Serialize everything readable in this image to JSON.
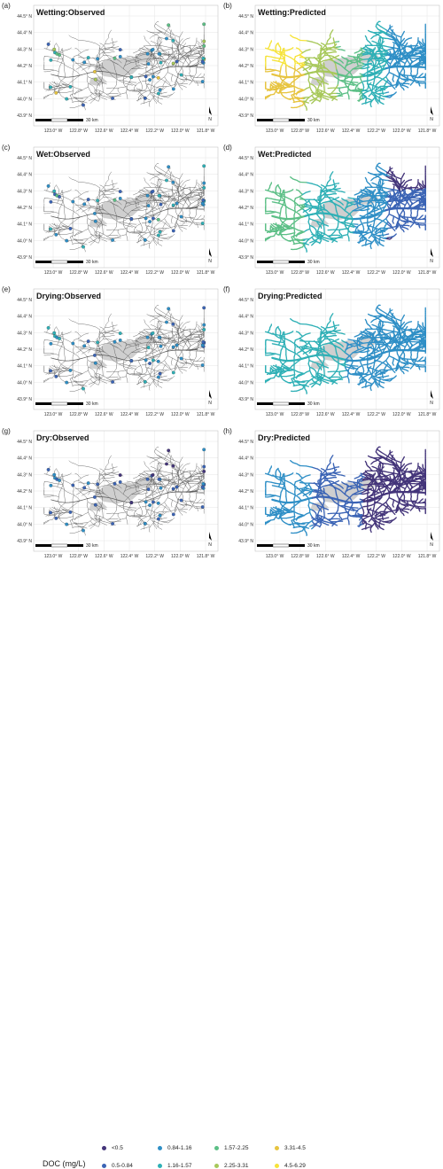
{
  "panels": [
    {
      "letter": "(a)",
      "title": "Wetting:Observed",
      "kind": "observed",
      "palette": "wetting"
    },
    {
      "letter": "(b)",
      "title": "Wetting:Predicted",
      "kind": "predicted",
      "palette": "wetting"
    },
    {
      "letter": "(c)",
      "title": "Wet:Observed",
      "kind": "observed",
      "palette": "wet"
    },
    {
      "letter": "(d)",
      "title": "Wet:Predicted",
      "kind": "predicted",
      "palette": "wet"
    },
    {
      "letter": "(e)",
      "title": "Drying:Observed",
      "kind": "observed",
      "palette": "drying"
    },
    {
      "letter": "(f)",
      "title": "Drying:Predicted",
      "kind": "predicted",
      "palette": "drying"
    },
    {
      "letter": "(g)",
      "title": "Dry:Observed",
      "kind": "observed",
      "palette": "dry"
    },
    {
      "letter": "(h)",
      "title": "Dry:Predicted",
      "kind": "predicted",
      "palette": "dry"
    }
  ],
  "lat_ticks": [
    "44.5° N",
    "44.4° N",
    "44.3° N",
    "44.2° N",
    "44.1° N",
    "44.0° N",
    "43.9° N"
  ],
  "lon_ticks": [
    "123.0° W",
    "122.8° W",
    "122.6° W",
    "122.4° W",
    "122.2° W",
    "122.0° W",
    "121.8° W"
  ],
  "scale_label": "30 km",
  "north_label": "N",
  "legend": {
    "title": "DOC (mg/L)",
    "items": [
      {
        "label": "<0.5",
        "color": "#44357a"
      },
      {
        "label": "0.5-0.84",
        "color": "#3b64b5"
      },
      {
        "label": "0.84-1.16",
        "color": "#2f8fc6"
      },
      {
        "label": "1.16-1.57",
        "color": "#2fb0b6"
      },
      {
        "label": "1.57-2.25",
        "color": "#5cbf86"
      },
      {
        "label": "2.25-3.31",
        "color": "#a7c85a"
      },
      {
        "label": "3.31-4.5",
        "color": "#e7c440"
      },
      {
        "label": "4.5-6.29",
        "color": "#f6e33a"
      }
    ]
  }
}
